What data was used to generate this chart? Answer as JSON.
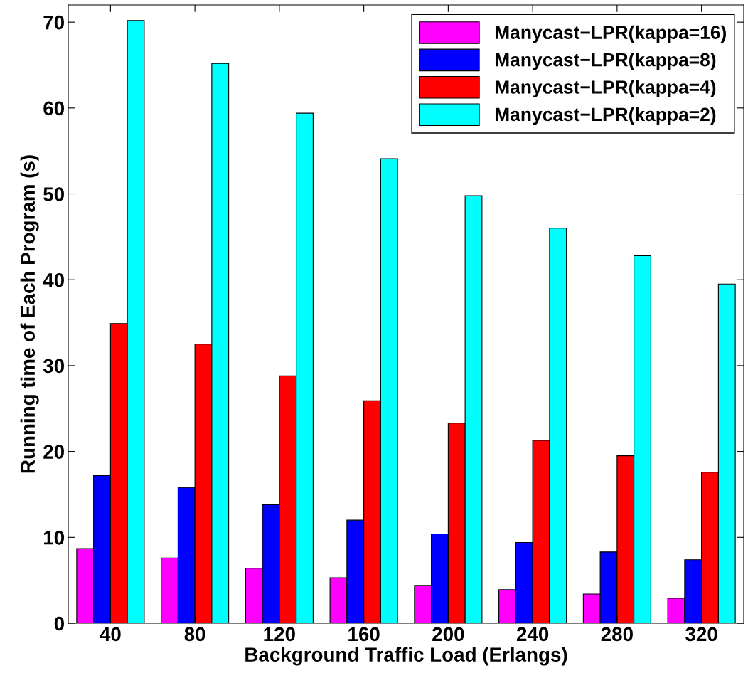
{
  "chart_data": {
    "type": "bar",
    "xlabel": "Background Traffic Load (Erlangs)",
    "ylabel": "Running time of Each Program (s)",
    "categories": [
      "40",
      "80",
      "120",
      "160",
      "200",
      "240",
      "280",
      "320"
    ],
    "series": [
      {
        "name": "Manycast−LPR(kappa=16)",
        "color": "#ff00ff",
        "values": [
          8.7,
          7.6,
          6.4,
          5.3,
          4.4,
          3.9,
          3.4,
          2.9
        ]
      },
      {
        "name": "Manycast−LPR(kappa=8)",
        "color": "#0000ff",
        "values": [
          17.2,
          15.8,
          13.8,
          12.0,
          10.4,
          9.4,
          8.3,
          7.4
        ]
      },
      {
        "name": "Manycast−LPR(kappa=4)",
        "color": "#ff0000",
        "values": [
          34.9,
          32.5,
          28.8,
          25.9,
          23.3,
          21.3,
          19.5,
          17.6
        ]
      },
      {
        "name": "Manycast−LPR(kappa=2)",
        "color": "#00ffff",
        "values": [
          70.2,
          65.2,
          59.4,
          54.1,
          49.8,
          46.0,
          42.8,
          39.5
        ]
      }
    ],
    "ylim": [
      0,
      72
    ],
    "yticks": [
      0,
      10,
      20,
      30,
      40,
      50,
      60,
      70
    ],
    "grid": false,
    "legend": "top right"
  }
}
